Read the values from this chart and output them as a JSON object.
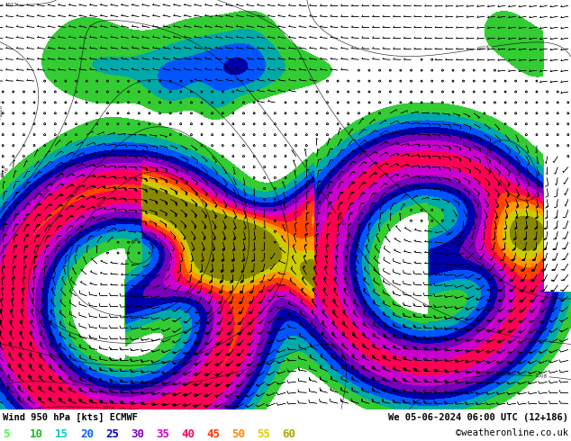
{
  "title_left": "Wind 950 hPa [kts] ECMWF",
  "title_right": "We 05-06-2024 06:00 UTC (12+186)",
  "copyright": "©weatheronline.co.uk",
  "colorbar_values": [
    5,
    10,
    15,
    20,
    25,
    30,
    35,
    40,
    45,
    50,
    55,
    60
  ],
  "bg_color": "#ffffff",
  "bottom_bg": "#f0f0f0",
  "colorbar_text_colors": [
    "#44ff44",
    "#22bb22",
    "#00cccc",
    "#0066ff",
    "#0000cc",
    "#8800cc",
    "#cc00cc",
    "#ff0066",
    "#ff3300",
    "#ff8800",
    "#ddcc00",
    "#aaaa00"
  ],
  "wind_colors": [
    "#ffffff",
    "#ffffff",
    "#33cc33",
    "#00aaaa",
    "#0055ff",
    "#0000aa",
    "#7700bb",
    "#cc00cc",
    "#ff0055",
    "#ff4400",
    "#ff9900",
    "#cccc00",
    "#888800"
  ],
  "wind_bounds": [
    0,
    5,
    10,
    15,
    20,
    25,
    30,
    35,
    40,
    45,
    50,
    55,
    60,
    70
  ]
}
